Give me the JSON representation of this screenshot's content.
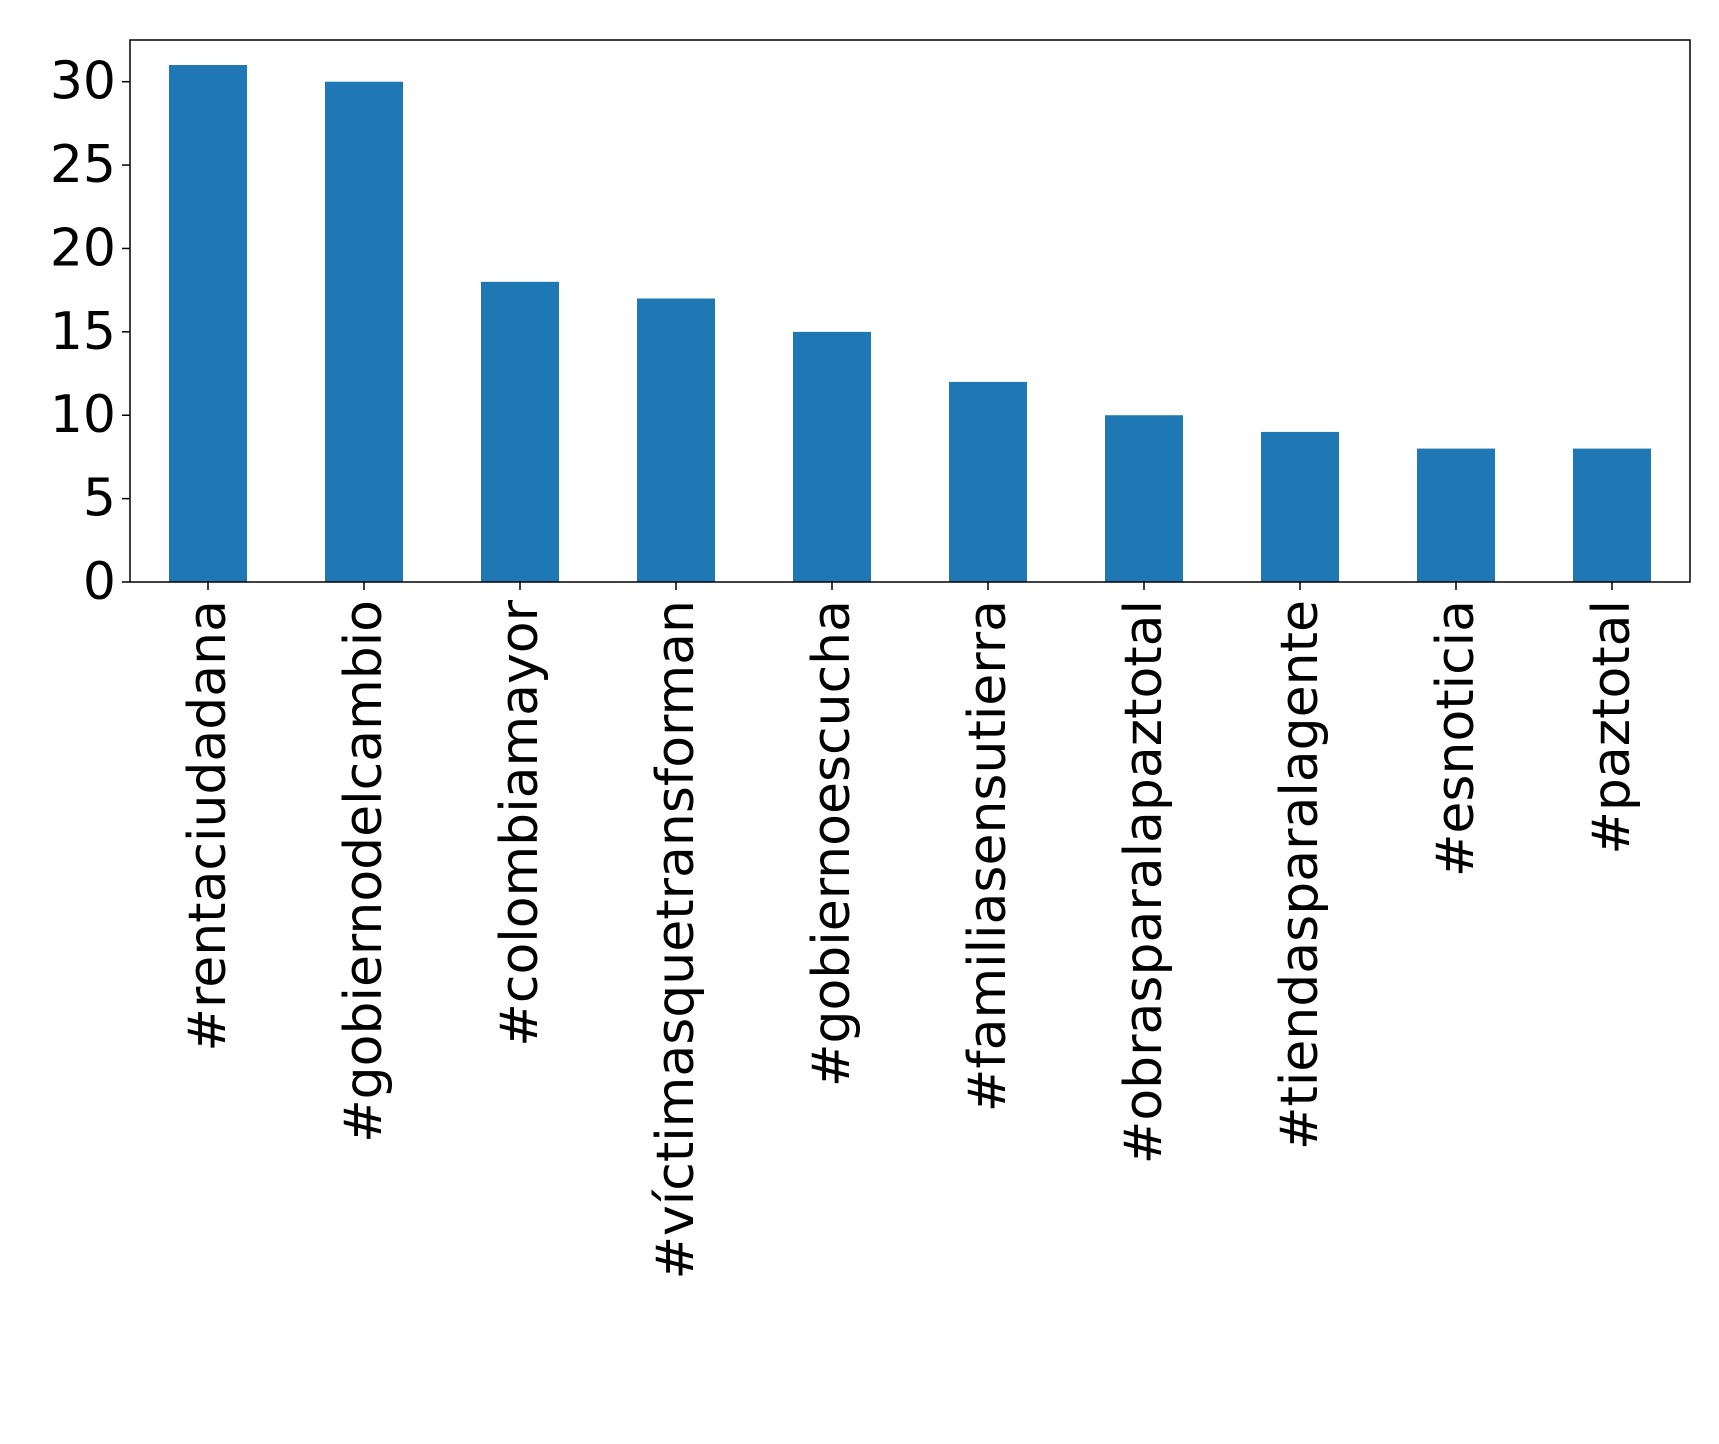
{
  "chart_data": {
    "type": "bar",
    "title": "",
    "xlabel": "",
    "ylabel": "",
    "categories": [
      "#rentaciudadana",
      "#gobiernodelcambio",
      "#colombiamayor",
      "#víctimasquetransforman",
      "#gobiernoescucha",
      "#familiasensutierra",
      "#obrasparalapaztotal",
      "#tiendasparalagente",
      "#esnoticia",
      "#paztotal"
    ],
    "values": [
      31,
      30,
      18,
      17,
      15,
      12,
      10,
      9,
      8,
      8
    ],
    "ylim": [
      0,
      32.5
    ],
    "yticks": [
      "0",
      "5",
      "10",
      "15",
      "20",
      "25",
      "30"
    ],
    "bar_color": "#1f77b4",
    "grid": false,
    "legend": "none"
  }
}
